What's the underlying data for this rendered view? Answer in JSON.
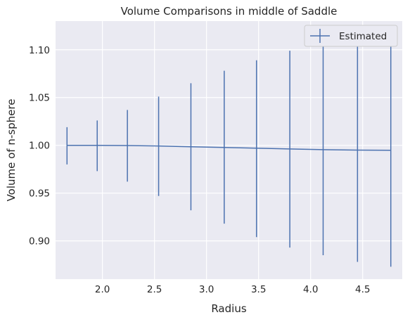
{
  "chart_data": {
    "type": "line",
    "title": "Volume Comparisons in middle of Saddle",
    "xlabel": "Radius",
    "ylabel": "Volume of n-sphere",
    "xlim": [
      1.55,
      4.88
    ],
    "ylim": [
      0.86,
      1.13
    ],
    "xticks": [
      "2.0",
      "2.5",
      "3.0",
      "3.5",
      "4.0",
      "4.5"
    ],
    "yticks": [
      "0.90",
      "0.95",
      "1.00",
      "1.05",
      "1.10"
    ],
    "grid": true,
    "legend_position": "top-right",
    "background": "#eaeaf2",
    "series_color": "#4c72b0",
    "series": [
      {
        "name": "Estimated",
        "x": [
          1.66,
          1.95,
          2.24,
          2.54,
          2.85,
          3.17,
          3.48,
          3.8,
          4.12,
          4.45,
          4.77
        ],
        "y": [
          1.0,
          1.0,
          0.9998,
          0.9993,
          0.9985,
          0.9978,
          0.997,
          0.9962,
          0.9955,
          0.995,
          0.9948
        ],
        "yerr_low": [
          0.98,
          0.973,
          0.962,
          0.947,
          0.932,
          0.918,
          0.904,
          0.893,
          0.885,
          0.878,
          0.873
        ],
        "yerr_high": [
          1.019,
          1.026,
          1.037,
          1.051,
          1.065,
          1.078,
          1.089,
          1.099,
          1.108,
          1.115,
          1.12
        ]
      }
    ]
  }
}
